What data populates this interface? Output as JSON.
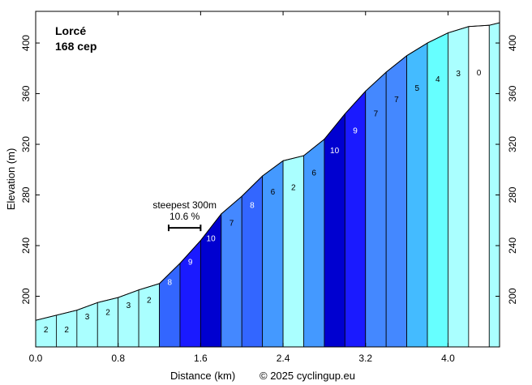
{
  "chart_data": {
    "type": "area",
    "title": "Lorcé",
    "subtitle": "168 cep",
    "xlabel": "Distance (km)",
    "ylabel": "Elevation (m)",
    "credit": "© 2025 cyclingup.eu",
    "xlim": [
      0,
      4.5
    ],
    "ylim": [
      160,
      425
    ],
    "x_ticks": [
      0.0,
      0.8,
      1.6,
      2.4,
      3.2,
      4.0
    ],
    "x_tick_labels": [
      "0.0",
      "0.8",
      "1.6",
      "2.4",
      "3.2",
      "4.0"
    ],
    "y_ticks": [
      200,
      240,
      280,
      320,
      360,
      400
    ],
    "y_tick_labels": [
      "200",
      "240",
      "280",
      "320",
      "360",
      "400"
    ],
    "grid": false,
    "segments": [
      {
        "x0": 0.0,
        "x1": 0.2,
        "y0": 181,
        "y1": 185,
        "label": "2",
        "color": "#AAFFFF"
      },
      {
        "x0": 0.2,
        "x1": 0.4,
        "y0": 185,
        "y1": 189,
        "label": "2",
        "color": "#AAFFFF"
      },
      {
        "x0": 0.4,
        "x1": 0.6,
        "y0": 189,
        "y1": 195,
        "label": "3",
        "color": "#AAFFFF"
      },
      {
        "x0": 0.6,
        "x1": 0.8,
        "y0": 195,
        "y1": 199,
        "label": "2",
        "color": "#AAFFFF"
      },
      {
        "x0": 0.8,
        "x1": 1.0,
        "y0": 199,
        "y1": 205,
        "label": "3",
        "color": "#AAFFFF"
      },
      {
        "x0": 1.0,
        "x1": 1.2,
        "y0": 205,
        "y1": 210,
        "label": "2",
        "color": "#AAFFFF"
      },
      {
        "x0": 1.2,
        "x1": 1.4,
        "y0": 210,
        "y1": 226,
        "label": "8",
        "color": "#3366FF"
      },
      {
        "x0": 1.4,
        "x1": 1.6,
        "y0": 226,
        "y1": 244,
        "label": "9",
        "color": "#1A1AFF"
      },
      {
        "x0": 1.6,
        "x1": 1.8,
        "y0": 244,
        "y1": 265,
        "label": "10",
        "color": "#0000D0"
      },
      {
        "x0": 1.8,
        "x1": 2.0,
        "y0": 265,
        "y1": 279,
        "label": "7",
        "color": "#4488FF"
      },
      {
        "x0": 2.0,
        "x1": 2.2,
        "y0": 279,
        "y1": 295,
        "label": "8",
        "color": "#3366FF"
      },
      {
        "x0": 2.2,
        "x1": 2.4,
        "y0": 295,
        "y1": 307,
        "label": "6",
        "color": "#4499FF"
      },
      {
        "x0": 2.4,
        "x1": 2.6,
        "y0": 307,
        "y1": 311,
        "label": "2",
        "color": "#AAFFFF"
      },
      {
        "x0": 2.6,
        "x1": 2.8,
        "y0": 311,
        "y1": 324,
        "label": "6",
        "color": "#4499FF"
      },
      {
        "x0": 2.8,
        "x1": 3.0,
        "y0": 324,
        "y1": 344,
        "label": "10",
        "color": "#0000D0"
      },
      {
        "x0": 3.0,
        "x1": 3.2,
        "y0": 344,
        "y1": 362,
        "label": "9",
        "color": "#1A1AFF"
      },
      {
        "x0": 3.2,
        "x1": 3.4,
        "y0": 362,
        "y1": 377,
        "label": "7",
        "color": "#4488FF"
      },
      {
        "x0": 3.4,
        "x1": 3.6,
        "y0": 377,
        "y1": 390,
        "label": "7",
        "color": "#4488FF"
      },
      {
        "x0": 3.6,
        "x1": 3.8,
        "y0": 390,
        "y1": 400,
        "label": "5",
        "color": "#44BBFF"
      },
      {
        "x0": 3.8,
        "x1": 4.0,
        "y0": 400,
        "y1": 408,
        "label": "4",
        "color": "#66FFFF"
      },
      {
        "x0": 4.0,
        "x1": 4.2,
        "y0": 408,
        "y1": 413,
        "label": "3",
        "color": "#AAFFFF"
      },
      {
        "x0": 4.2,
        "x1": 4.4,
        "y0": 413,
        "y1": 414,
        "label": "0",
        "color": "#FFFFFF"
      },
      {
        "x0": 4.4,
        "x1": 4.5,
        "y0": 414,
        "y1": 416,
        "label": "",
        "color": "#AAFFFF"
      }
    ],
    "annotations": [
      {
        "text": "steepest 300m",
        "x0": 1.29,
        "x1": 1.6,
        "y": 254
      },
      {
        "text": "10.6 %"
      }
    ]
  }
}
